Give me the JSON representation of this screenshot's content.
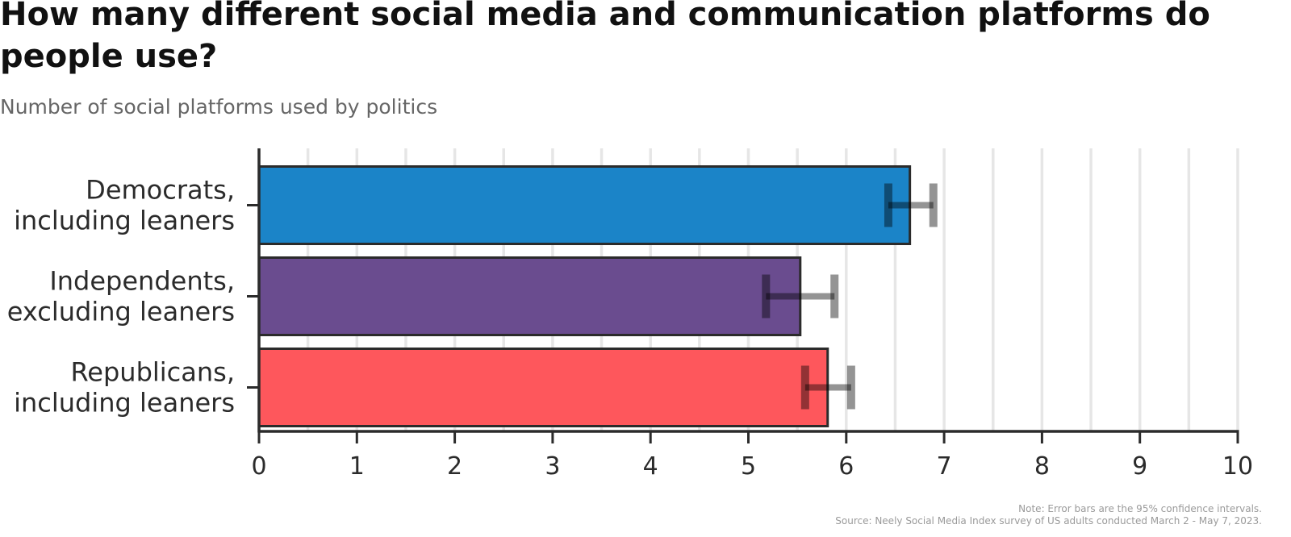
{
  "title": "How many different social media and communication platforms do people use?",
  "subtitle": "Number of social platforms used by politics",
  "note": "Note: Error bars are the 95% confidence intervals.",
  "source": "Source: Neely Social Media Index survey of US adults conducted March 2 - May 7, 2023.",
  "chart_data": {
    "type": "bar",
    "orientation": "horizontal",
    "categories": [
      [
        "Democrats,",
        "including leaners"
      ],
      [
        "Independents,",
        "excluding leaners"
      ],
      [
        "Republicans,",
        "including leaners"
      ]
    ],
    "values": [
      6.65,
      5.53,
      5.81
    ],
    "error_low": [
      6.43,
      5.18,
      5.58
    ],
    "error_high": [
      6.89,
      5.88,
      6.05
    ],
    "colors": [
      "#1b84c8",
      "#6a4c8f",
      "#fe575c"
    ],
    "xlim": [
      0,
      10
    ],
    "xticks": [
      "0",
      "1",
      "2",
      "3",
      "4",
      "5",
      "6",
      "7",
      "8",
      "9",
      "10"
    ],
    "grid": "vertical",
    "error_bar_note": "95% confidence intervals"
  }
}
